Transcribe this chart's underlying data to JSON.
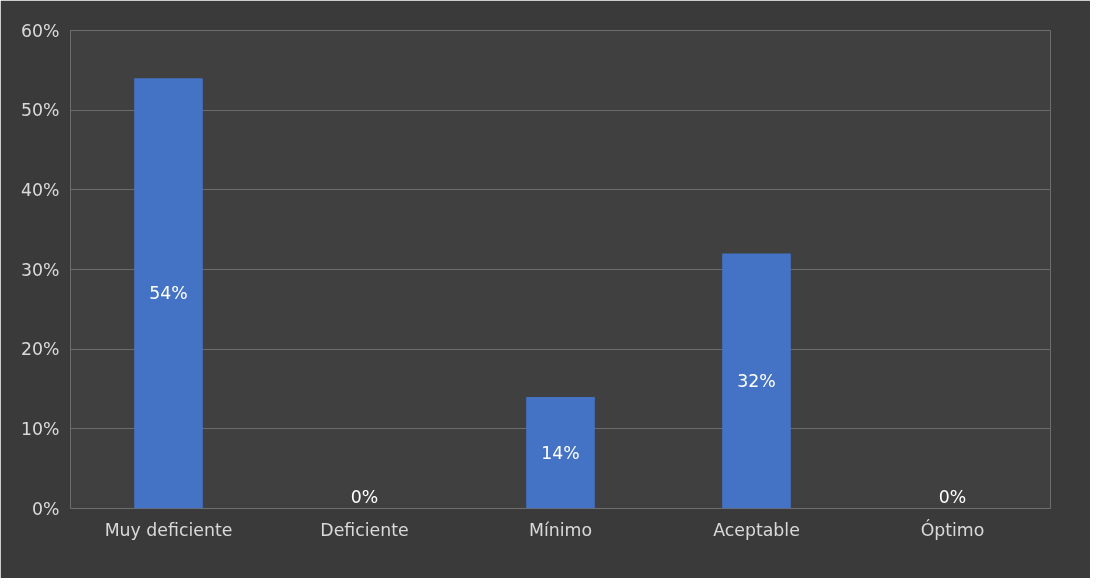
{
  "chart_data": {
    "type": "bar",
    "categories": [
      "Muy deficiente",
      "Deficiente",
      "Mínimo",
      "Aceptable",
      "Óptimo"
    ],
    "values": [
      54,
      0,
      14,
      32,
      0
    ],
    "color": "#4472c4",
    "value_labels": [
      "54%",
      "0%",
      "14%",
      "32%",
      "0%"
    ],
    "ylim": [
      0,
      60
    ],
    "yticks": [
      {
        "value": 0,
        "label": "0%"
      },
      {
        "value": 10,
        "label": "10%"
      },
      {
        "value": 20,
        "label": "20%"
      },
      {
        "value": 30,
        "label": "30%"
      },
      {
        "value": 40,
        "label": "40%"
      },
      {
        "value": 50,
        "label": "50%"
      },
      {
        "value": 60,
        "label": "60%"
      }
    ],
    "grid": "y"
  }
}
